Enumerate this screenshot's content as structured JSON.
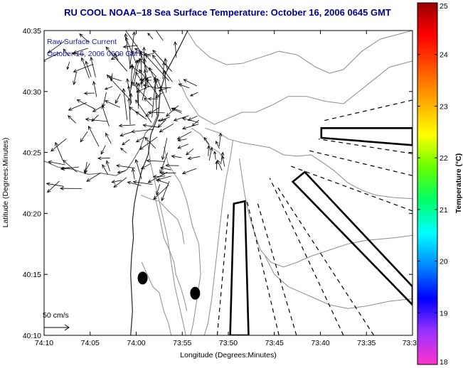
{
  "title": "RU COOL  NOAA–18  Sea Surface Temperature:  October 16, 2006 0645 GMT",
  "annotation": {
    "line1": "Raw Surface Current",
    "line2": "October 16, 2006 0600 GMT"
  },
  "scale": {
    "label": "50 cm/s"
  },
  "axes": {
    "xlabel": "Longitude (Degrees:Minutes)",
    "ylabel": "Latitude (Degrees:Minutes)",
    "xticks": [
      {
        "v": 0,
        "label": "74:10"
      },
      {
        "v": 5,
        "label": "74:05"
      },
      {
        "v": 10,
        "label": "74:00"
      },
      {
        "v": 15,
        "label": "73:55"
      },
      {
        "v": 20,
        "label": "73:50"
      },
      {
        "v": 25,
        "label": "73:45"
      },
      {
        "v": 30,
        "label": "73:40"
      },
      {
        "v": 35,
        "label": "73:35"
      },
      {
        "v": 40,
        "label": "73:3"
      }
    ],
    "yticks": [
      {
        "v": 10,
        "label": "40:10"
      },
      {
        "v": 15,
        "label": "40:15"
      },
      {
        "v": 20,
        "label": "40:20"
      },
      {
        "v": 25,
        "label": "40:25"
      },
      {
        "v": 30,
        "label": "40:30"
      },
      {
        "v": 35,
        "label": "40:35"
      }
    ],
    "xrange": [
      0,
      40
    ],
    "yrange": [
      10,
      35
    ]
  },
  "colorbar": {
    "label": "Temperature (°C)",
    "range": [
      18,
      25
    ],
    "ticks": [
      "18",
      "19",
      "20",
      "21",
      "22",
      "23",
      "24",
      "25"
    ],
    "colors": [
      "#ff33cc",
      "#9933ff",
      "#0000ff",
      "#0088ff",
      "#00ffff",
      "#00ff66",
      "#66ff00",
      "#ffff00",
      "#ffaa00",
      "#ff5500",
      "#ff0000",
      "#990000"
    ]
  },
  "coast": [
    [
      15.6,
      35
    ],
    [
      14.6,
      33.5
    ],
    [
      13.2,
      31.5
    ],
    [
      12.6,
      30
    ],
    [
      12.4,
      28
    ],
    [
      11.6,
      26.5
    ],
    [
      11.3,
      24.8
    ],
    [
      10.6,
      23.5
    ],
    [
      10.1,
      22
    ],
    [
      9.8,
      20.8
    ],
    [
      9.6,
      19.4
    ],
    [
      9.7,
      18
    ],
    [
      9.5,
      16.5
    ],
    [
      9.4,
      15
    ],
    [
      9.5,
      13.5
    ],
    [
      9.6,
      12
    ],
    [
      9.4,
      10
    ]
  ],
  "bay_shore": [
    [
      0,
      24.3
    ],
    [
      1.5,
      23.8
    ],
    [
      3.2,
      23.6
    ],
    [
      4.8,
      23.2
    ],
    [
      6.2,
      23.3
    ],
    [
      7.8,
      23.1
    ],
    [
      9.0,
      23.6
    ],
    [
      9.7,
      24.4
    ],
    [
      10.4,
      25.3
    ],
    [
      11.0,
      26.6
    ],
    [
      11.8,
      27.2
    ],
    [
      12.4,
      28.2
    ]
  ],
  "contours": [
    [
      [
        15.5,
        35
      ],
      [
        16.5,
        33.8
      ],
      [
        18,
        32.8
      ],
      [
        19.8,
        32.2
      ],
      [
        21.5,
        32.3
      ],
      [
        23.5,
        32.8
      ],
      [
        25.5,
        33.3
      ],
      [
        27.5,
        33.0
      ],
      [
        29.5,
        32.0
      ],
      [
        31,
        31.5
      ],
      [
        32.5,
        31.8
      ],
      [
        34.5,
        33.3
      ],
      [
        36.5,
        34.3
      ],
      [
        40,
        35
      ]
    ],
    [
      [
        14.6,
        31
      ],
      [
        15.5,
        29.5
      ],
      [
        16.8,
        28
      ],
      [
        18.5,
        27.3
      ],
      [
        20,
        27.8
      ],
      [
        21.5,
        28.3
      ],
      [
        23,
        28.3
      ],
      [
        24.8,
        28.9
      ],
      [
        26.5,
        29.6
      ],
      [
        28.5,
        29.6
      ],
      [
        30.5,
        29.2
      ],
      [
        32.5,
        29.0
      ],
      [
        35,
        30.5
      ],
      [
        37.5,
        32
      ],
      [
        40,
        32.5
      ]
    ],
    [
      [
        17.5,
        27
      ],
      [
        19,
        26.6
      ],
      [
        20,
        26.1
      ],
      [
        21.5,
        25.8
      ],
      [
        23,
        25.6
      ],
      [
        24.5,
        25.4
      ],
      [
        26,
        24.8
      ],
      [
        27.5,
        24.7
      ],
      [
        29,
        24.8
      ],
      [
        30.2,
        24.2
      ],
      [
        31.5,
        23.5
      ],
      [
        33,
        22.5
      ],
      [
        34.5,
        21.9
      ],
      [
        36,
        21.5
      ],
      [
        38,
        21.3
      ],
      [
        40,
        21.2
      ]
    ],
    [
      [
        20.5,
        26
      ],
      [
        20.2,
        24.5
      ],
      [
        19.8,
        23
      ],
      [
        19.4,
        21
      ],
      [
        19.1,
        19
      ],
      [
        18.8,
        17
      ],
      [
        18.5,
        15
      ],
      [
        18.2,
        13
      ],
      [
        17.8,
        11
      ],
      [
        17.4,
        10
      ]
    ],
    [
      [
        21.2,
        24.5
      ],
      [
        21.5,
        23
      ],
      [
        21.8,
        21.5
      ],
      [
        22.2,
        20
      ],
      [
        22.8,
        18.5
      ],
      [
        23.5,
        17
      ],
      [
        24.6,
        16
      ],
      [
        26,
        15.6
      ],
      [
        27.5,
        16
      ],
      [
        29,
        16.5
      ],
      [
        31,
        17
      ],
      [
        33,
        17.5
      ],
      [
        35,
        17.8
      ],
      [
        38,
        18
      ],
      [
        40,
        18.2
      ]
    ],
    [
      [
        11.2,
        26
      ],
      [
        11.6,
        24
      ],
      [
        12.2,
        22
      ],
      [
        12.8,
        20
      ],
      [
        13.4,
        18
      ],
      [
        13.8,
        16
      ],
      [
        14.2,
        14
      ],
      [
        14.8,
        12
      ],
      [
        15.4,
        10
      ]
    ],
    [
      [
        13,
        25.5
      ],
      [
        13.5,
        24
      ],
      [
        14.8,
        22.5
      ],
      [
        15.5,
        21
      ],
      [
        16.1,
        19
      ],
      [
        16.8,
        17.5
      ],
      [
        17,
        15
      ],
      [
        16.6,
        13
      ],
      [
        16.2,
        11
      ],
      [
        15.9,
        10
      ]
    ],
    [
      [
        24,
        16.5
      ],
      [
        25,
        15
      ],
      [
        26.5,
        14
      ],
      [
        28,
        13.5
      ],
      [
        29.5,
        13
      ],
      [
        31,
        12.5
      ],
      [
        33,
        12.2
      ],
      [
        35,
        12.4
      ],
      [
        37.5,
        12.8
      ],
      [
        40,
        13
      ]
    ],
    [
      [
        12,
        21.5
      ],
      [
        12.6,
        19.5
      ],
      [
        13,
        18
      ],
      [
        13.6,
        17
      ],
      [
        14.1,
        16
      ],
      [
        14.3,
        15
      ],
      [
        14.8,
        14
      ],
      [
        15.2,
        13
      ],
      [
        15.5,
        12
      ]
    ],
    [
      [
        10.6,
        16
      ],
      [
        11.2,
        15
      ],
      [
        11.8,
        14
      ],
      [
        12.5,
        13.5
      ],
      [
        13,
        12
      ],
      [
        13.5,
        11
      ],
      [
        13.8,
        10
      ]
    ],
    [
      [
        16,
        27
      ],
      [
        17,
        26.5
      ],
      [
        18,
        25.5
      ],
      [
        19,
        25
      ],
      [
        19.5,
        24.5
      ]
    ],
    [
      [
        10.5,
        21.5
      ],
      [
        11.5,
        21.2
      ],
      [
        12.5,
        21
      ],
      [
        13.5,
        20.2
      ],
      [
        14.5,
        19.5
      ],
      [
        15,
        18.5
      ],
      [
        15.2,
        17.5
      ]
    ]
  ],
  "dashed_rays": [
    [
      [
        40,
        29.3
      ],
      [
        30.3,
        27.6
      ]
    ],
    [
      [
        40,
        24.9
      ],
      [
        29.8,
        26.1
      ]
    ],
    [
      [
        40,
        23.1
      ],
      [
        28.5,
        25.2
      ]
    ],
    [
      [
        40,
        20.2
      ],
      [
        26.7,
        23.9
      ]
    ],
    [
      [
        35.8,
        10
      ],
      [
        25.4,
        22.1
      ]
    ],
    [
      [
        32.5,
        10
      ],
      [
        24.5,
        22.9
      ]
    ],
    [
      [
        27.4,
        10
      ],
      [
        23.2,
        20.8
      ]
    ],
    [
      [
        25.5,
        10
      ],
      [
        22.0,
        21.1
      ]
    ],
    [
      [
        18.8,
        10
      ],
      [
        20.0,
        20.1
      ]
    ]
  ],
  "boxes": [
    [
      [
        30.1,
        26.2
      ],
      [
        40,
        25.6
      ],
      [
        40,
        27.0
      ],
      [
        30.1,
        27.0
      ]
    ],
    [
      [
        20.2,
        10
      ],
      [
        20.6,
        20.8
      ],
      [
        21.8,
        21.0
      ],
      [
        22.2,
        10
      ]
    ],
    [
      [
        27.0,
        22.6
      ],
      [
        28.3,
        23.4
      ],
      [
        40,
        14.0
      ],
      [
        40,
        12.5
      ]
    ]
  ],
  "buoys": [
    {
      "x": 10.7,
      "y": 14.7
    },
    {
      "x": 16.4,
      "y": 13.45
    }
  ],
  "current_seed": 12345
}
